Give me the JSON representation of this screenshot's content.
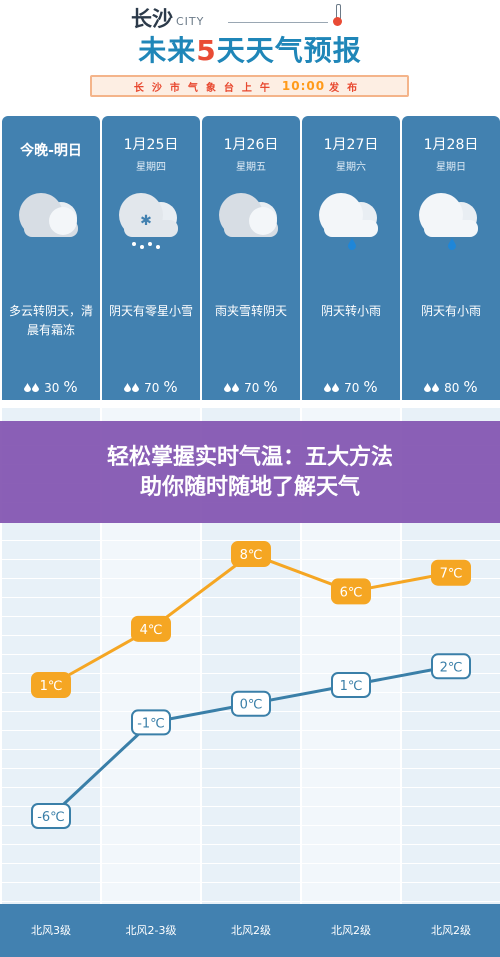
{
  "header": {
    "city_cn": "长沙",
    "city_en": "CITY",
    "title_prefix": "未来",
    "title_num": "5",
    "title_suffix": "天天气预报",
    "banner_left": "长沙市气象台上午",
    "banner_time": "10:00",
    "banner_right": "发布"
  },
  "days": [
    {
      "date": "今晚-明日",
      "weekday": "",
      "desc": "多云转阴天，清晨有霜冻",
      "rain": "30",
      "icon": "cloud-icon"
    },
    {
      "date": "1月25日",
      "weekday": "星期四",
      "desc": "阴天有零星小雪",
      "rain": "70",
      "icon": "snow-cloud-icon"
    },
    {
      "date": "1月26日",
      "weekday": "星期五",
      "desc": "雨夹雪转阴天",
      "rain": "70",
      "icon": "cloud-icon"
    },
    {
      "date": "1月27日",
      "weekday": "星期六",
      "desc": "阴天转小雨",
      "rain": "70",
      "icon": "rain-cloud-icon"
    },
    {
      "date": "1月28日",
      "weekday": "星期日",
      "desc": "阴天有小雨",
      "rain": "80",
      "icon": "rain-cloud-icon"
    }
  ],
  "rain_unit": "%",
  "overlay": {
    "line1": "轻松掌握实时气温：五大方法",
    "line2": "助你随时随地了解天气"
  },
  "winds": [
    "北风3级",
    "北风2-3级",
    "北风2级",
    "北风2级",
    "北风2级"
  ],
  "colors": {
    "column_blue": "#4281b0",
    "high_line": "#f5a623",
    "low_line": "#3a7fa8",
    "overlay_purple": "#8254b0"
  },
  "chart_data": {
    "type": "line",
    "categories": [
      "今晚-明日",
      "1月25日",
      "1月26日",
      "1月27日",
      "1月28日"
    ],
    "series": [
      {
        "values": [
          1,
          4,
          8,
          6,
          7
        ],
        "labels": [
          "1℃",
          "4℃",
          "8℃",
          "6℃",
          "7℃"
        ]
      },
      {
        "values": [
          -6,
          -1,
          0,
          1,
          2
        ],
        "labels": [
          "-6℃",
          "-1℃",
          "0℃",
          "1℃",
          "2℃"
        ]
      }
    ],
    "ylim": [
      -6,
      8
    ],
    "grid": true
  }
}
